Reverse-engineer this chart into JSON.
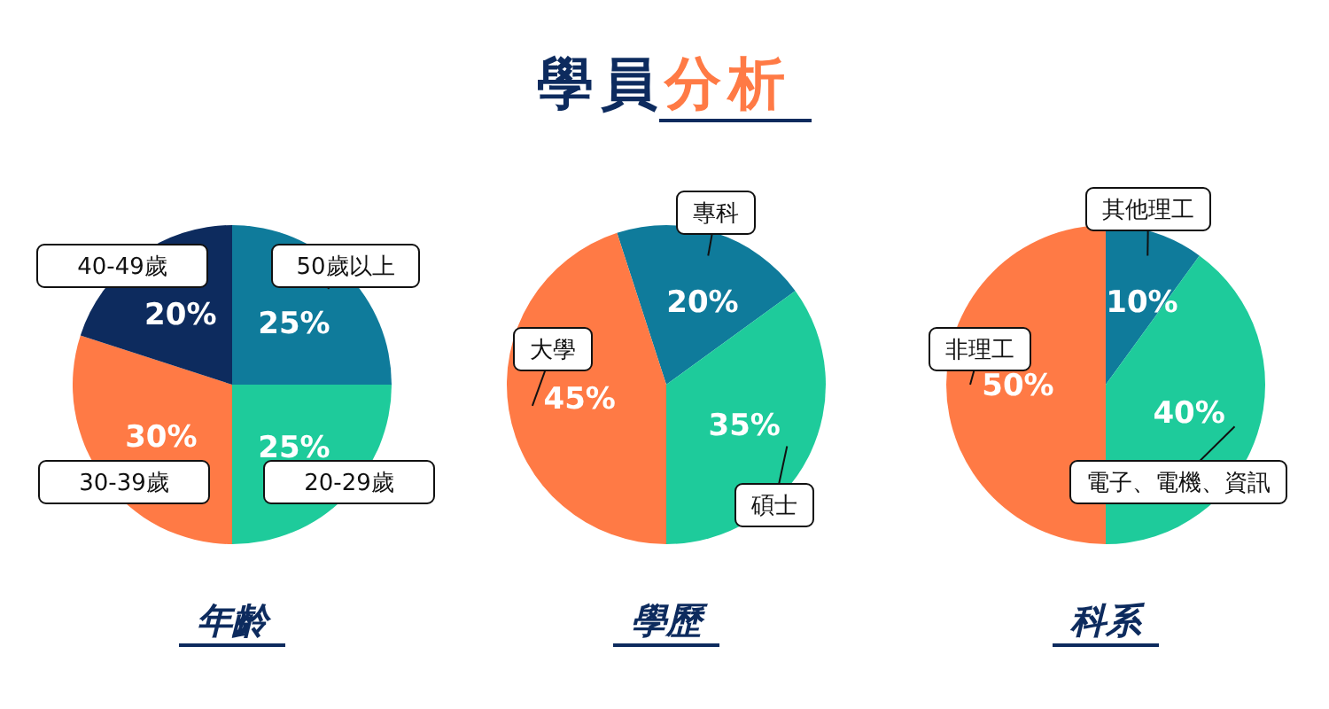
{
  "chart_data": [
    {
      "type": "pie",
      "xlabel": "年齡",
      "categories": [
        "50歲以上",
        "20-29歲",
        "30-39歲",
        "40-49歲"
      ],
      "values": [
        25,
        25,
        30,
        20
      ],
      "colors": [
        "#0f7b9b",
        "#1ecb9b",
        "#ff7a45",
        "#0d2b5e"
      ],
      "value_labels": [
        "25%",
        "25%",
        "30%",
        "20%"
      ]
    },
    {
      "type": "pie",
      "title": "學員分析",
      "xlabel": "學歷",
      "categories": [
        "專科",
        "碩士",
        "大學"
      ],
      "values": [
        20,
        35,
        45
      ],
      "colors": [
        "#0f7b9b",
        "#1ecb9b",
        "#ff7a45"
      ],
      "value_labels": [
        "20%",
        "35%",
        "45%"
      ]
    },
    {
      "type": "pie",
      "xlabel": "科系",
      "categories": [
        "其他理工",
        "電子、電機、資訊",
        "非理工"
      ],
      "values": [
        10,
        40,
        50
      ],
      "colors": [
        "#0f7b9b",
        "#1ecb9b",
        "#ff7a45"
      ],
      "value_labels": [
        "10%",
        "40%",
        "50%"
      ]
    }
  ]
}
